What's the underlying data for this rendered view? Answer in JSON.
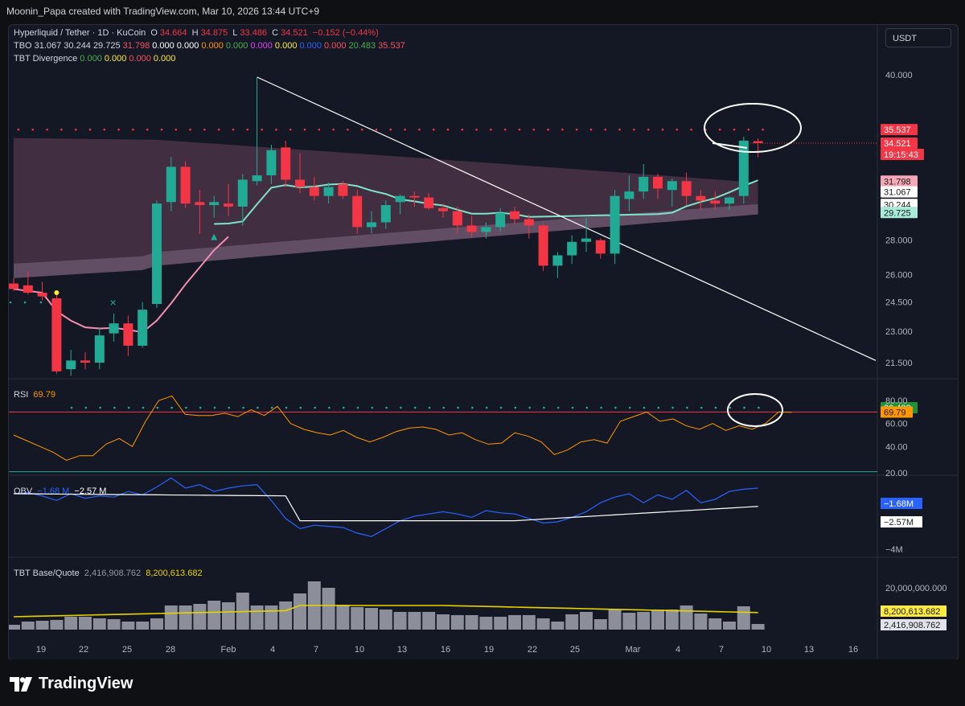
{
  "header": {
    "credit": "Moonin_Papa created with TradingView.com, Mar 10, 2026 13:44 UTC+9"
  },
  "legend": {
    "main": {
      "pair": "Hyperliquid / Tether · 1D · KuCoin",
      "o_label": "O",
      "o": "34.664",
      "h_label": "H",
      "h": "34.875",
      "l_label": "L",
      "l": "33.486",
      "c_label": "C",
      "c": "34.521",
      "chg": "−0.152 (−0.44%)"
    },
    "tbo": {
      "label": "TBO",
      "values": [
        "31.067",
        "30.244",
        "29.725",
        "31.798",
        "0.000",
        "0.000",
        "0.000",
        "0.000",
        "0.000",
        "0.000",
        "0.000",
        "0.000",
        "20.483",
        "35.537"
      ],
      "colors": [
        "#d1d4dc",
        "#d1d4dc",
        "#d1d4dc",
        "#f7525f",
        "#ffffff",
        "#ffffff",
        "#ff9800",
        "#4caf50",
        "#e040fb",
        "#ffeb3b",
        "#2962ff",
        "#f7525f",
        "#4caf50",
        "#f7525f"
      ]
    },
    "tbt_div": {
      "label": "TBT Divergence",
      "values": [
        "0.000",
        "0.000",
        "0.000",
        "0.000"
      ],
      "colors": [
        "#4caf50",
        "#ffeb3b",
        "#f7525f",
        "#ffeb3b"
      ]
    },
    "rsi": {
      "label": "RSI",
      "value": "69.79"
    },
    "obv": {
      "label": "OBV",
      "v1": "−1.68 M",
      "v2": "−2.57 M"
    },
    "tbt_bq": {
      "label": "TBT Base/Quote",
      "v1": "2,416,908.762",
      "v2": "8,200,613.682"
    }
  },
  "currency": "USDT",
  "colors": {
    "up": "#22ab94",
    "down": "#f23645",
    "teal_ma": "#7fe3c8",
    "pink_ma": "#f48fb1",
    "rsi": "#ff9800",
    "obv": "#2962ff",
    "obv_ma": "#ffffff",
    "vol_ma": "#e6d200"
  },
  "price_axis": {
    "ticks": [
      "40.000",
      "28.000",
      "26.000",
      "24.500",
      "23.000",
      "21.500"
    ],
    "labels": [
      {
        "text": "35.537",
        "bg": "#f23645",
        "fg": "#ffffff"
      },
      {
        "text": "34.521",
        "bg": "#f23645",
        "fg": "#ffffff"
      },
      {
        "text": "19:15:43",
        "bg": "#f23645",
        "fg": "#ffffff"
      },
      {
        "text": "31.798",
        "bg": "#f7a8b8",
        "fg": "#1a1a1a"
      },
      {
        "text": "31.067",
        "bg": "#ffffff",
        "fg": "#1a1a1a"
      },
      {
        "text": "30.244",
        "bg": "#ffffff",
        "fg": "#1a1a1a"
      },
      {
        "text": "29.725",
        "bg": "#a8ecd8",
        "fg": "#1a1a1a"
      },
      {
        "text": "20.483",
        "bg": "#1e8f3a",
        "fg": "#ffffff"
      }
    ]
  },
  "rsi_axis": {
    "ticks": [
      "80.00",
      "60.00",
      "40.00",
      "20.00"
    ],
    "label": "69.79"
  },
  "obv_axis": {
    "ticks": [
      "−4M"
    ],
    "l1": "−1.68M",
    "l2": "−2.57M"
  },
  "vol_axis": {
    "ticks": [
      "20,000,000.000"
    ],
    "l1": "8,200,613.682",
    "l2": "2,416,908.762"
  },
  "time_axis": [
    "19",
    "22",
    "25",
    "28",
    "Feb",
    "4",
    "7",
    "10",
    "13",
    "16",
    "19",
    "22",
    "25",
    "Mar",
    "4",
    "7",
    "10",
    "13",
    "16"
  ],
  "chart_data": {
    "type": "candlestick",
    "title": "Hyperliquid / Tether · 1D · KuCoin",
    "dates": [
      "Jan17",
      "Jan18",
      "Jan19",
      "Jan20",
      "Jan21",
      "Jan22",
      "Jan23",
      "Jan24",
      "Jan25",
      "Jan26",
      "Jan27",
      "Jan28",
      "Jan29",
      "Jan30",
      "Jan31",
      "Feb1",
      "Feb2",
      "Feb3",
      "Feb4",
      "Feb5",
      "Feb6",
      "Feb7",
      "Feb8",
      "Feb9",
      "Feb10",
      "Feb11",
      "Feb12",
      "Feb13",
      "Feb14",
      "Feb15",
      "Feb16",
      "Feb17",
      "Feb18",
      "Feb19",
      "Feb20",
      "Feb21",
      "Feb22",
      "Feb23",
      "Feb24",
      "Feb25",
      "Feb26",
      "Feb27",
      "Feb28",
      "Mar1",
      "Mar2",
      "Mar3",
      "Mar4",
      "Mar5",
      "Mar6",
      "Mar7",
      "Mar8",
      "Mar9",
      "Mar10"
    ],
    "ohlc": [
      [
        25.5,
        25.8,
        25.1,
        25.2
      ],
      [
        25.4,
        26.2,
        24.9,
        25.0
      ],
      [
        25.0,
        25.6,
        24.6,
        24.8
      ],
      [
        24.7,
        25.0,
        21.0,
        21.1
      ],
      [
        21.2,
        22.1,
        20.9,
        21.6
      ],
      [
        21.6,
        22.0,
        21.2,
        21.5
      ],
      [
        21.5,
        23.2,
        21.2,
        22.8
      ],
      [
        22.9,
        23.9,
        22.5,
        23.4
      ],
      [
        23.4,
        23.8,
        21.8,
        22.3
      ],
      [
        22.3,
        24.5,
        22.2,
        24.1
      ],
      [
        24.4,
        30.5,
        24.2,
        30.3
      ],
      [
        30.4,
        33.5,
        29.8,
        32.8
      ],
      [
        32.8,
        33.2,
        30.0,
        30.3
      ],
      [
        30.4,
        31.2,
        28.4,
        30.2
      ],
      [
        30.2,
        30.8,
        29.4,
        30.4
      ],
      [
        30.3,
        31.6,
        29.5,
        30.1
      ],
      [
        30.1,
        32.3,
        28.9,
        31.9
      ],
      [
        31.8,
        39.8,
        31.5,
        32.2
      ],
      [
        32.2,
        34.4,
        31.6,
        34.0
      ],
      [
        34.2,
        34.7,
        31.4,
        31.9
      ],
      [
        31.9,
        33.8,
        31.0,
        31.4
      ],
      [
        31.4,
        32.1,
        30.5,
        30.8
      ],
      [
        30.8,
        31.7,
        30.3,
        31.4
      ],
      [
        31.6,
        31.8,
        30.6,
        30.8
      ],
      [
        30.8,
        31.2,
        28.4,
        28.8
      ],
      [
        28.8,
        29.8,
        28.4,
        29.1
      ],
      [
        29.1,
        30.5,
        28.7,
        30.2
      ],
      [
        30.4,
        30.9,
        29.6,
        30.8
      ],
      [
        30.8,
        31.1,
        30.1,
        30.7
      ],
      [
        30.7,
        31.0,
        29.9,
        30.0
      ],
      [
        30.0,
        30.3,
        29.4,
        29.8
      ],
      [
        29.8,
        30.1,
        28.4,
        28.9
      ],
      [
        28.9,
        29.5,
        28.2,
        28.5
      ],
      [
        28.5,
        29.1,
        28.1,
        28.8
      ],
      [
        28.8,
        30.0,
        28.5,
        29.7
      ],
      [
        29.8,
        30.1,
        29.0,
        29.3
      ],
      [
        29.3,
        29.6,
        28.1,
        28.9
      ],
      [
        28.9,
        29.0,
        26.2,
        26.5
      ],
      [
        26.5,
        27.3,
        25.8,
        27.1
      ],
      [
        27.1,
        28.3,
        26.6,
        27.9
      ],
      [
        27.9,
        29.4,
        27.3,
        28.1
      ],
      [
        28.0,
        28.1,
        26.9,
        27.2
      ],
      [
        27.2,
        31.2,
        26.6,
        30.8
      ],
      [
        30.6,
        32.2,
        29.8,
        31.1
      ],
      [
        31.1,
        33.0,
        30.6,
        32.1
      ],
      [
        32.1,
        32.3,
        30.6,
        31.3
      ],
      [
        31.2,
        32.0,
        30.1,
        31.8
      ],
      [
        31.8,
        32.4,
        30.2,
        30.8
      ],
      [
        30.8,
        31.2,
        29.9,
        30.5
      ],
      [
        30.5,
        31.1,
        29.9,
        30.3
      ],
      [
        30.3,
        30.8,
        29.9,
        30.7
      ],
      [
        30.8,
        35.0,
        30.3,
        34.7
      ],
      [
        34.664,
        34.875,
        33.486,
        34.521
      ]
    ],
    "tbo_band_upper": [
      35.5,
      35.2,
      35.0,
      34.8,
      34.6
    ],
    "rsi": {
      "name": "RSI",
      "last": 69.79,
      "levels": [
        70,
        30
      ]
    },
    "obv": {
      "name": "OBV",
      "values": [
        -1.68,
        -2.57
      ]
    },
    "tbt_base_quote": {
      "base": 2416908.762,
      "quote": 8200613.682
    },
    "downtrend_line": {
      "from": [
        "Feb3",
        39.8
      ],
      "to": [
        "Mar16",
        21.5
      ]
    }
  }
}
